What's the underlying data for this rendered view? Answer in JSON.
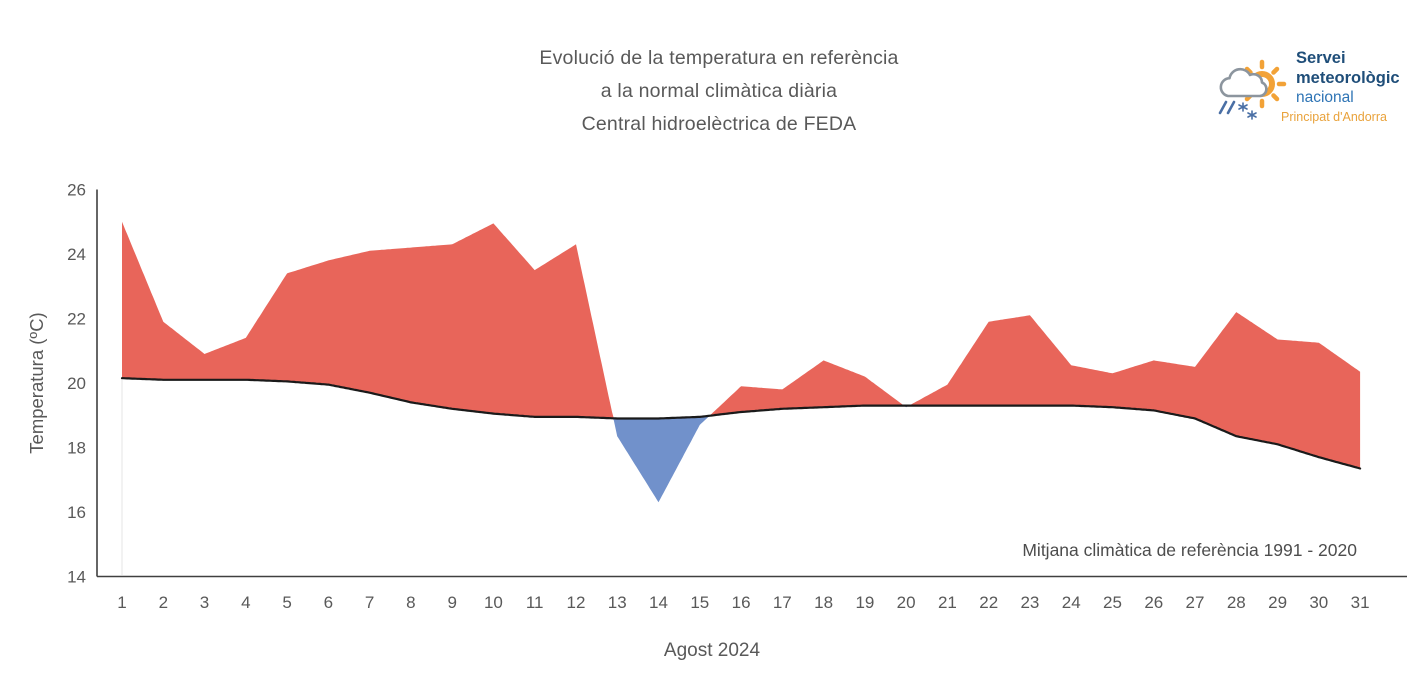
{
  "title": {
    "line1": "Evolució de la temperatura en referència",
    "line2": "a la normal climàtica diària",
    "line3": "Central hidroelèctrica de FEDA"
  },
  "logo": {
    "line1": "Servei",
    "line2": "meteorològic",
    "line3": "nacional",
    "subtitle": "Principat d'Andorra"
  },
  "chart_data": {
    "type": "area",
    "title": "Evolució de la temperatura en referència a la normal climàtica diària — Central hidroelèctrica de FEDA",
    "xlabel": "Agost 2024",
    "ylabel": "Temperatura (ºC)",
    "ylim": [
      14,
      26
    ],
    "yticks": [
      14,
      16,
      18,
      20,
      22,
      24,
      26
    ],
    "x": [
      1,
      2,
      3,
      4,
      5,
      6,
      7,
      8,
      9,
      10,
      11,
      12,
      13,
      14,
      15,
      16,
      17,
      18,
      19,
      20,
      21,
      22,
      23,
      24,
      25,
      26,
      27,
      28,
      29,
      30,
      31
    ],
    "series": [
      {
        "id": "temperatura-mitjana-diaria",
        "color": "#E8655A",
        "values": [
          25.0,
          21.9,
          20.9,
          21.4,
          23.4,
          23.8,
          24.1,
          24.2,
          24.3,
          24.95,
          23.5,
          24.3,
          18.35,
          16.3,
          18.7,
          19.9,
          19.8,
          20.7,
          20.2,
          19.25,
          19.95,
          21.9,
          22.1,
          20.55,
          20.3,
          20.7,
          20.5,
          22.2,
          21.35,
          21.25,
          20.35
        ]
      },
      {
        "id": "normal-climatica-1991-2020",
        "color": "#1A1A1A",
        "values": [
          20.15,
          20.1,
          20.1,
          20.1,
          20.05,
          19.95,
          19.7,
          19.4,
          19.2,
          19.05,
          18.95,
          18.95,
          18.9,
          18.9,
          18.95,
          19.1,
          19.2,
          19.25,
          19.3,
          19.3,
          19.3,
          19.3,
          19.3,
          19.3,
          19.25,
          19.15,
          18.9,
          18.35,
          18.1,
          17.7,
          17.35
        ]
      }
    ],
    "fill_above_color": "#E8655A",
    "fill_below_color": "#7191CB",
    "grid": false,
    "legend": false,
    "annotation": "Mitjana climàtica de referència 1991 - 2020"
  }
}
